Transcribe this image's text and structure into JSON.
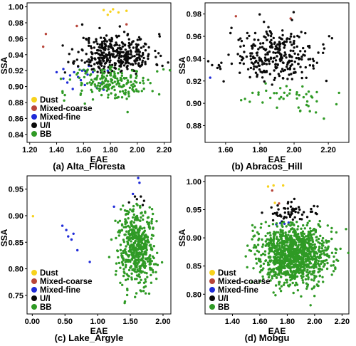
{
  "colors": {
    "Dust": "#f7d21c",
    "Mixed-coarse": "#b8453a",
    "Mixed-fine": "#1f2bd8",
    "U/I": "#0a0a0a",
    "BB": "#2f9a25"
  },
  "chart_data": [
    {
      "type": "scatter",
      "caption": "(a) Alta_Floresta",
      "xlabel": "EAE",
      "ylabel": "SSA",
      "xlim": [
        1.18,
        2.25
      ],
      "ylim": [
        0.83,
        1.005
      ],
      "xticks": [
        "1.20",
        "1.40",
        "1.60",
        "1.80",
        "2.00",
        "2.20"
      ],
      "yticks": [
        "0.84",
        "0.86",
        "0.88",
        "0.90",
        "0.92",
        "0.94",
        "0.96",
        "0.98",
        "1.00"
      ],
      "legend": [
        "Dust",
        "Mixed-coarse",
        "Mixed-fine",
        "U/I",
        "BB"
      ],
      "legend_position": "bottom-left",
      "series": [
        {
          "name": "Dust",
          "points": [
            [
              1.75,
              0.996
            ],
            [
              1.8,
              0.994
            ],
            [
              1.82,
              0.997
            ],
            [
              1.86,
              0.993
            ],
            [
              1.92,
              0.995
            ],
            [
              1.78,
              0.99
            ]
          ]
        },
        {
          "name": "Mixed-coarse",
          "points": [
            [
              1.32,
              0.966
            ],
            [
              1.55,
              0.976
            ],
            [
              1.66,
              0.948
            ],
            [
              1.92,
              0.978
            ],
            [
              1.3,
              0.95
            ]
          ]
        },
        {
          "name": "Mixed-fine",
          "points": [
            [
              1.4,
              0.918
            ],
            [
              1.45,
              0.922
            ],
            [
              1.5,
              0.914
            ],
            [
              1.53,
              0.918
            ],
            [
              1.56,
              0.912
            ],
            [
              1.58,
              0.908
            ],
            [
              1.61,
              0.902
            ],
            [
              1.63,
              0.915
            ],
            [
              1.67,
              0.918
            ],
            [
              1.7,
              0.898
            ],
            [
              1.73,
              0.904
            ],
            [
              1.48,
              0.905
            ],
            [
              1.52,
              0.897
            ],
            [
              1.59,
              0.92
            ],
            [
              1.64,
              0.926
            ],
            [
              1.75,
              0.896
            ],
            [
              1.56,
              0.925
            ],
            [
              1.45,
              0.91
            ],
            [
              1.69,
              0.91
            ],
            [
              1.61,
              0.92
            ],
            [
              1.78,
              0.92
            ]
          ]
        },
        {
          "name": "U/I",
          "rand": {
            "n": 360,
            "cx": 1.84,
            "sx": 0.14,
            "cy": 0.94,
            "sy": 0.013,
            "ymin": 0.915,
            "seed": 11
          }
        },
        {
          "name": "BB",
          "rand": {
            "n": 190,
            "cx": 1.83,
            "sx": 0.15,
            "cy": 0.905,
            "sy": 0.012,
            "ymax": 0.925,
            "seed": 12
          }
        }
      ]
    },
    {
      "type": "scatter",
      "caption": "(b) Abracos_Hill",
      "xlabel": "EAE",
      "ylabel": "SSA",
      "xlim": [
        1.48,
        2.32
      ],
      "ylim": [
        0.865,
        0.99
      ],
      "xticks": [
        "1.60",
        "1.80",
        "2.00",
        "2.20"
      ],
      "yticks": [
        "0.88",
        "0.90",
        "0.92",
        "0.94",
        "0.96",
        "0.98"
      ],
      "legend": [],
      "series": [
        {
          "name": "Mixed-coarse",
          "points": [
            [
              1.66,
              0.978
            ],
            [
              1.98,
              0.976
            ]
          ]
        },
        {
          "name": "Mixed-fine",
          "points": [
            [
              1.51,
              0.923
            ]
          ]
        },
        {
          "name": "U/I",
          "rand": {
            "n": 300,
            "cx": 1.9,
            "sx": 0.13,
            "cy": 0.942,
            "sy": 0.012,
            "ymin": 0.915,
            "seed": 21
          }
        },
        {
          "name": "BB",
          "rand": {
            "n": 45,
            "cx": 1.95,
            "sx": 0.14,
            "cy": 0.908,
            "sy": 0.008,
            "ymax": 0.918,
            "seed": 22
          }
        }
      ]
    },
    {
      "type": "scatter",
      "caption": "(c) Lake_Argyle",
      "xlabel": "EAE",
      "ylabel": "SSA",
      "xlim": [
        -0.08,
        2.12
      ],
      "ylim": [
        0.715,
        0.975
      ],
      "xticks": [
        "0.00",
        "0.50",
        "1.00",
        "1.50",
        "2.00"
      ],
      "yticks": [
        "0.75",
        "0.80",
        "0.85",
        "0.90",
        "0.95"
      ],
      "legend": [
        "Dust",
        "Mixed-coarse",
        "Mixed-fine",
        "U/I",
        "BB"
      ],
      "legend_position": "bottom-left",
      "series": [
        {
          "name": "Dust",
          "points": [
            [
              0.01,
              0.899
            ]
          ]
        },
        {
          "name": "Mixed-fine",
          "points": [
            [
              0.46,
              0.881
            ],
            [
              0.52,
              0.873
            ],
            [
              0.55,
              0.861
            ],
            [
              0.6,
              0.855
            ],
            [
              0.63,
              0.866
            ],
            [
              0.69,
              0.835
            ],
            [
              0.88,
              0.813
            ],
            [
              1.25,
              0.917
            ],
            [
              1.54,
              0.941
            ],
            [
              1.62,
              0.971
            ],
            [
              1.64,
              0.962
            ]
          ]
        },
        {
          "name": "U/I",
          "points": [
            [
              1.57,
              0.936
            ],
            [
              1.6,
              0.931
            ],
            [
              1.66,
              0.936
            ],
            [
              1.69,
              0.92
            ],
            [
              1.71,
              0.928
            ],
            [
              1.48,
              0.925
            ]
          ]
        },
        {
          "name": "BB",
          "rand": {
            "n": 520,
            "cx": 1.6,
            "sx": 0.14,
            "cy": 0.84,
            "sy": 0.036,
            "ymax": 0.925,
            "seed": 31
          }
        }
      ]
    },
    {
      "type": "scatter",
      "caption": "(d) Mobgu",
      "xlabel": "EAE",
      "ylabel": "SSA",
      "xlim": [
        1.2,
        2.25
      ],
      "ylim": [
        0.765,
        1.01
      ],
      "xticks": [
        "1.40",
        "1.60",
        "1.80",
        "2.00",
        "2.20"
      ],
      "yticks": [
        "0.80",
        "0.85",
        "0.90",
        "0.95",
        "1.00"
      ],
      "legend": [
        "Dust",
        "Mixed-coarse",
        "Mixed-fine",
        "U/I",
        "BB"
      ],
      "legend_position": "bottom-left",
      "series": [
        {
          "name": "Dust",
          "points": [
            [
              1.66,
              0.991
            ],
            [
              1.7,
              0.993
            ],
            [
              1.77,
              0.993
            ],
            [
              1.71,
              0.962
            ]
          ]
        },
        {
          "name": "Mixed-coarse",
          "points": [
            [
              1.69,
              0.984
            ],
            [
              1.74,
              0.961
            ]
          ]
        },
        {
          "name": "Mixed-fine",
          "points": [
            [
              1.72,
              0.924
            ],
            [
              1.75,
              0.926
            ],
            [
              1.78,
              0.925
            ],
            [
              1.81,
              0.927
            ],
            [
              1.76,
              0.929
            ]
          ]
        },
        {
          "name": "U/I",
          "rand": {
            "n": 60,
            "cx": 1.85,
            "sx": 0.1,
            "cy": 0.94,
            "sy": 0.012,
            "ymin": 0.928,
            "seed": 41
          }
        },
        {
          "name": "BB",
          "rand": {
            "n": 1100,
            "cx": 1.85,
            "sx": 0.13,
            "cy": 0.872,
            "sy": 0.028,
            "ymax": 0.93,
            "seed": 42
          }
        }
      ]
    }
  ]
}
